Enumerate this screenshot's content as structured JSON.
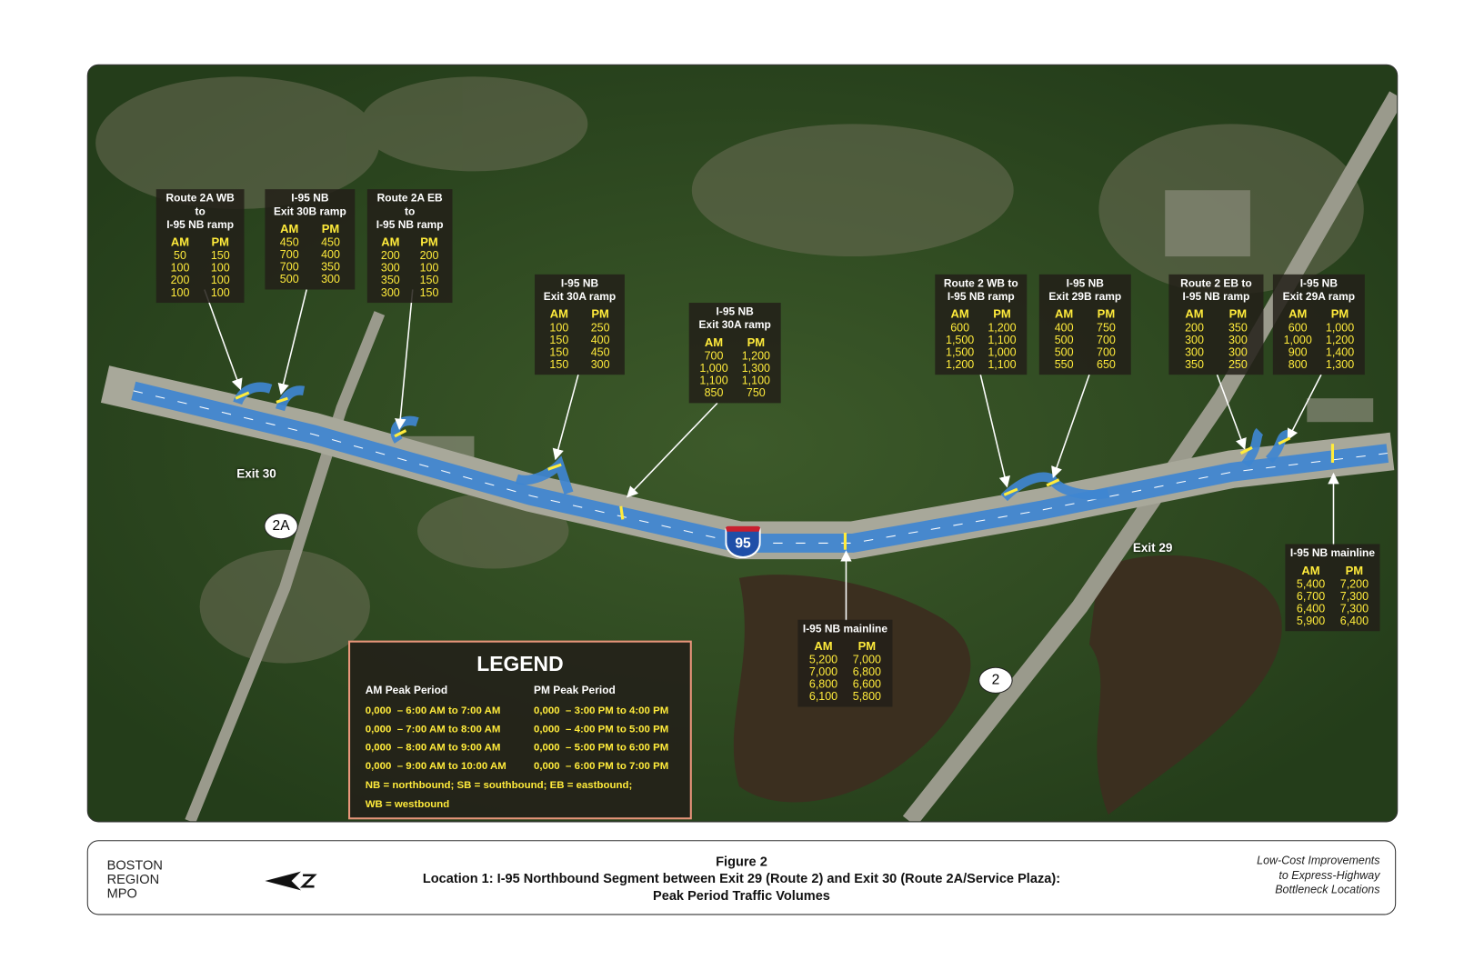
{
  "map": {
    "labels": {
      "exit_30": "Exit 30",
      "exit_29": "Exit 29"
    },
    "shields": {
      "route_2a": "2A",
      "interstate_95": "95",
      "route_2": "2"
    }
  },
  "count_boxes": [
    {
      "title": [
        "Route 2A WB to",
        "I-95 NB ramp"
      ],
      "columns": [
        "AM",
        "PM"
      ],
      "rows": [
        [
          "50",
          "150"
        ],
        [
          "100",
          "100"
        ],
        [
          "200",
          "100"
        ],
        [
          "100",
          "100"
        ]
      ]
    },
    {
      "title": [
        "I-95 NB",
        "Exit 30B ramp"
      ],
      "columns": [
        "AM",
        "PM"
      ],
      "rows": [
        [
          "450",
          "450"
        ],
        [
          "700",
          "400"
        ],
        [
          "700",
          "350"
        ],
        [
          "500",
          "300"
        ]
      ]
    },
    {
      "title": [
        "Route 2A EB to",
        "I-95 NB ramp"
      ],
      "columns": [
        "AM",
        "PM"
      ],
      "rows": [
        [
          "200",
          "200"
        ],
        [
          "300",
          "100"
        ],
        [
          "350",
          "150"
        ],
        [
          "300",
          "150"
        ]
      ]
    },
    {
      "title": [
        "I-95 NB",
        "Exit 30A ramp"
      ],
      "columns": [
        "AM",
        "PM"
      ],
      "rows": [
        [
          "100",
          "250"
        ],
        [
          "150",
          "400"
        ],
        [
          "150",
          "450"
        ],
        [
          "150",
          "300"
        ]
      ]
    },
    {
      "title": [
        "I-95 NB",
        "Exit 30A ramp"
      ],
      "columns": [
        "AM",
        "PM"
      ],
      "rows": [
        [
          "700",
          "1,200"
        ],
        [
          "1,000",
          "1,300"
        ],
        [
          "1,100",
          "1,100"
        ],
        [
          "850",
          "750"
        ]
      ]
    },
    {
      "title": [
        "Route 2 WB to",
        "I-95 NB ramp"
      ],
      "columns": [
        "AM",
        "PM"
      ],
      "rows": [
        [
          "600",
          "1,200"
        ],
        [
          "1,500",
          "1,100"
        ],
        [
          "1,500",
          "1,000"
        ],
        [
          "1,200",
          "1,100"
        ]
      ]
    },
    {
      "title": [
        "I-95 NB",
        "Exit 29B ramp"
      ],
      "columns": [
        "AM",
        "PM"
      ],
      "rows": [
        [
          "400",
          "750"
        ],
        [
          "500",
          "700"
        ],
        [
          "500",
          "700"
        ],
        [
          "550",
          "650"
        ]
      ]
    },
    {
      "title": [
        "Route 2 EB to",
        "I-95 NB ramp"
      ],
      "columns": [
        "AM",
        "PM"
      ],
      "rows": [
        [
          "200",
          "350"
        ],
        [
          "300",
          "300"
        ],
        [
          "300",
          "300"
        ],
        [
          "350",
          "250"
        ]
      ]
    },
    {
      "title": [
        "I-95 NB",
        "Exit 29A ramp"
      ],
      "columns": [
        "AM",
        "PM"
      ],
      "rows": [
        [
          "600",
          "1,000"
        ],
        [
          "1,000",
          "1,200"
        ],
        [
          "900",
          "1,400"
        ],
        [
          "800",
          "1,300"
        ]
      ]
    },
    {
      "title": [
        "I-95 NB mainline"
      ],
      "columns": [
        "AM",
        "PM"
      ],
      "rows": [
        [
          "5,200",
          "7,000"
        ],
        [
          "7,000",
          "6,800"
        ],
        [
          "6,800",
          "6,600"
        ],
        [
          "6,100",
          "5,800"
        ]
      ]
    },
    {
      "title": [
        "I-95 NB mainline"
      ],
      "columns": [
        "AM",
        "PM"
      ],
      "rows": [
        [
          "5,400",
          "7,200"
        ],
        [
          "6,700",
          "7,300"
        ],
        [
          "6,400",
          "7,300"
        ],
        [
          "5,900",
          "6,400"
        ]
      ]
    }
  ],
  "legend": {
    "title": "LEGEND",
    "columns": [
      "AM Peak Period",
      "PM Peak Period"
    ],
    "rows": [
      [
        "0,000  – 6:00 AM to 7:00 AM",
        "0,000  – 3:00 PM to 4:00 PM"
      ],
      [
        "0,000  – 7:00 AM to 8:00 AM",
        "0,000  – 4:00 PM to 5:00 PM"
      ],
      [
        "0,000  – 8:00 AM to 9:00 AM",
        "0,000  – 5:00 PM to 6:00 PM"
      ],
      [
        "0,000  – 9:00 AM to 10:00 AM",
        "0,000  – 6:00 PM to 7:00 PM"
      ]
    ],
    "notes": [
      "NB = northbound; SB = southbound; EB = eastbound;",
      "WB = westbound"
    ]
  },
  "footer": {
    "organization": [
      "BOSTON",
      "REGION",
      "MPO"
    ],
    "figure": [
      "Figure 2",
      "Location 1: I-95 Northbound Segment between Exit 29 (Route 2) and Exit 30 (Route 2A/Service Plaza):",
      "Peak Period Traffic Volumes"
    ],
    "study": [
      "Low-Cost Improvements",
      "to Express-Highway",
      "Bottleneck Locations"
    ]
  }
}
